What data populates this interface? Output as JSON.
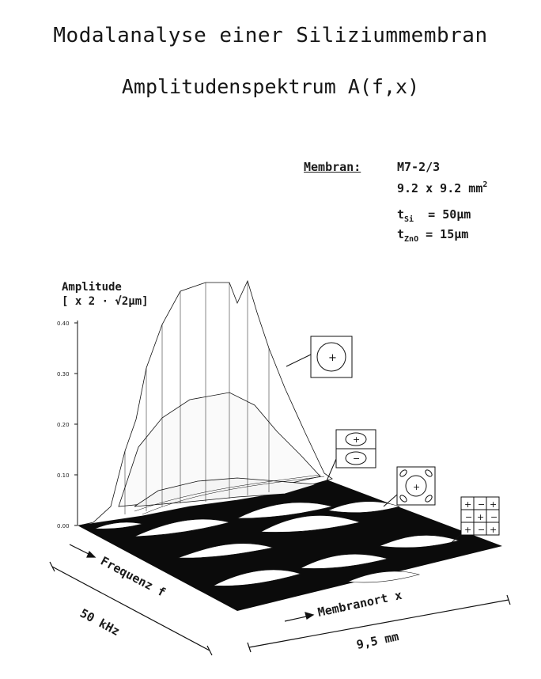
{
  "title": "Modalanalyse einer Siliziummembran",
  "subtitle": "Amplitudenspektrum A(f,x)",
  "membrane": {
    "label": "Membran:",
    "id": "M7-2/3",
    "size": "9.2 x 9.2 mm",
    "size_sup": "2",
    "t_si_main": "t",
    "t_si_sub": "Si",
    "t_si_value": "= 50μm",
    "t_zno_main": "t",
    "t_zno_sub": "ZnO",
    "t_zno_value": "= 15μm"
  },
  "chart_data": {
    "type": "surface",
    "ylabel_line1": "Amplitude",
    "ylabel_line2": "[ x 2 · √2μm]",
    "zlim": [
      0,
      0.4
    ],
    "z_ticks": [
      "0.00",
      "0.10",
      "0.20",
      "0.30",
      "0.40"
    ],
    "frequency_axis_label": "Frequenz f",
    "frequency_span_label": "50 kHz",
    "position_axis_label": "Membranort x",
    "position_span_label": "9,5 mm",
    "mode_insets": [
      "+",
      "+ / −",
      "+ − (2 nodal)",
      "+ − + / − + − / + − +"
    ],
    "mode_peaks_approx": [
      0.39,
      0.24,
      0.05,
      0.02
    ],
    "colors": {
      "ink": "#111111",
      "fill": "#0a0a0a",
      "paper": "#ffffff"
    }
  }
}
